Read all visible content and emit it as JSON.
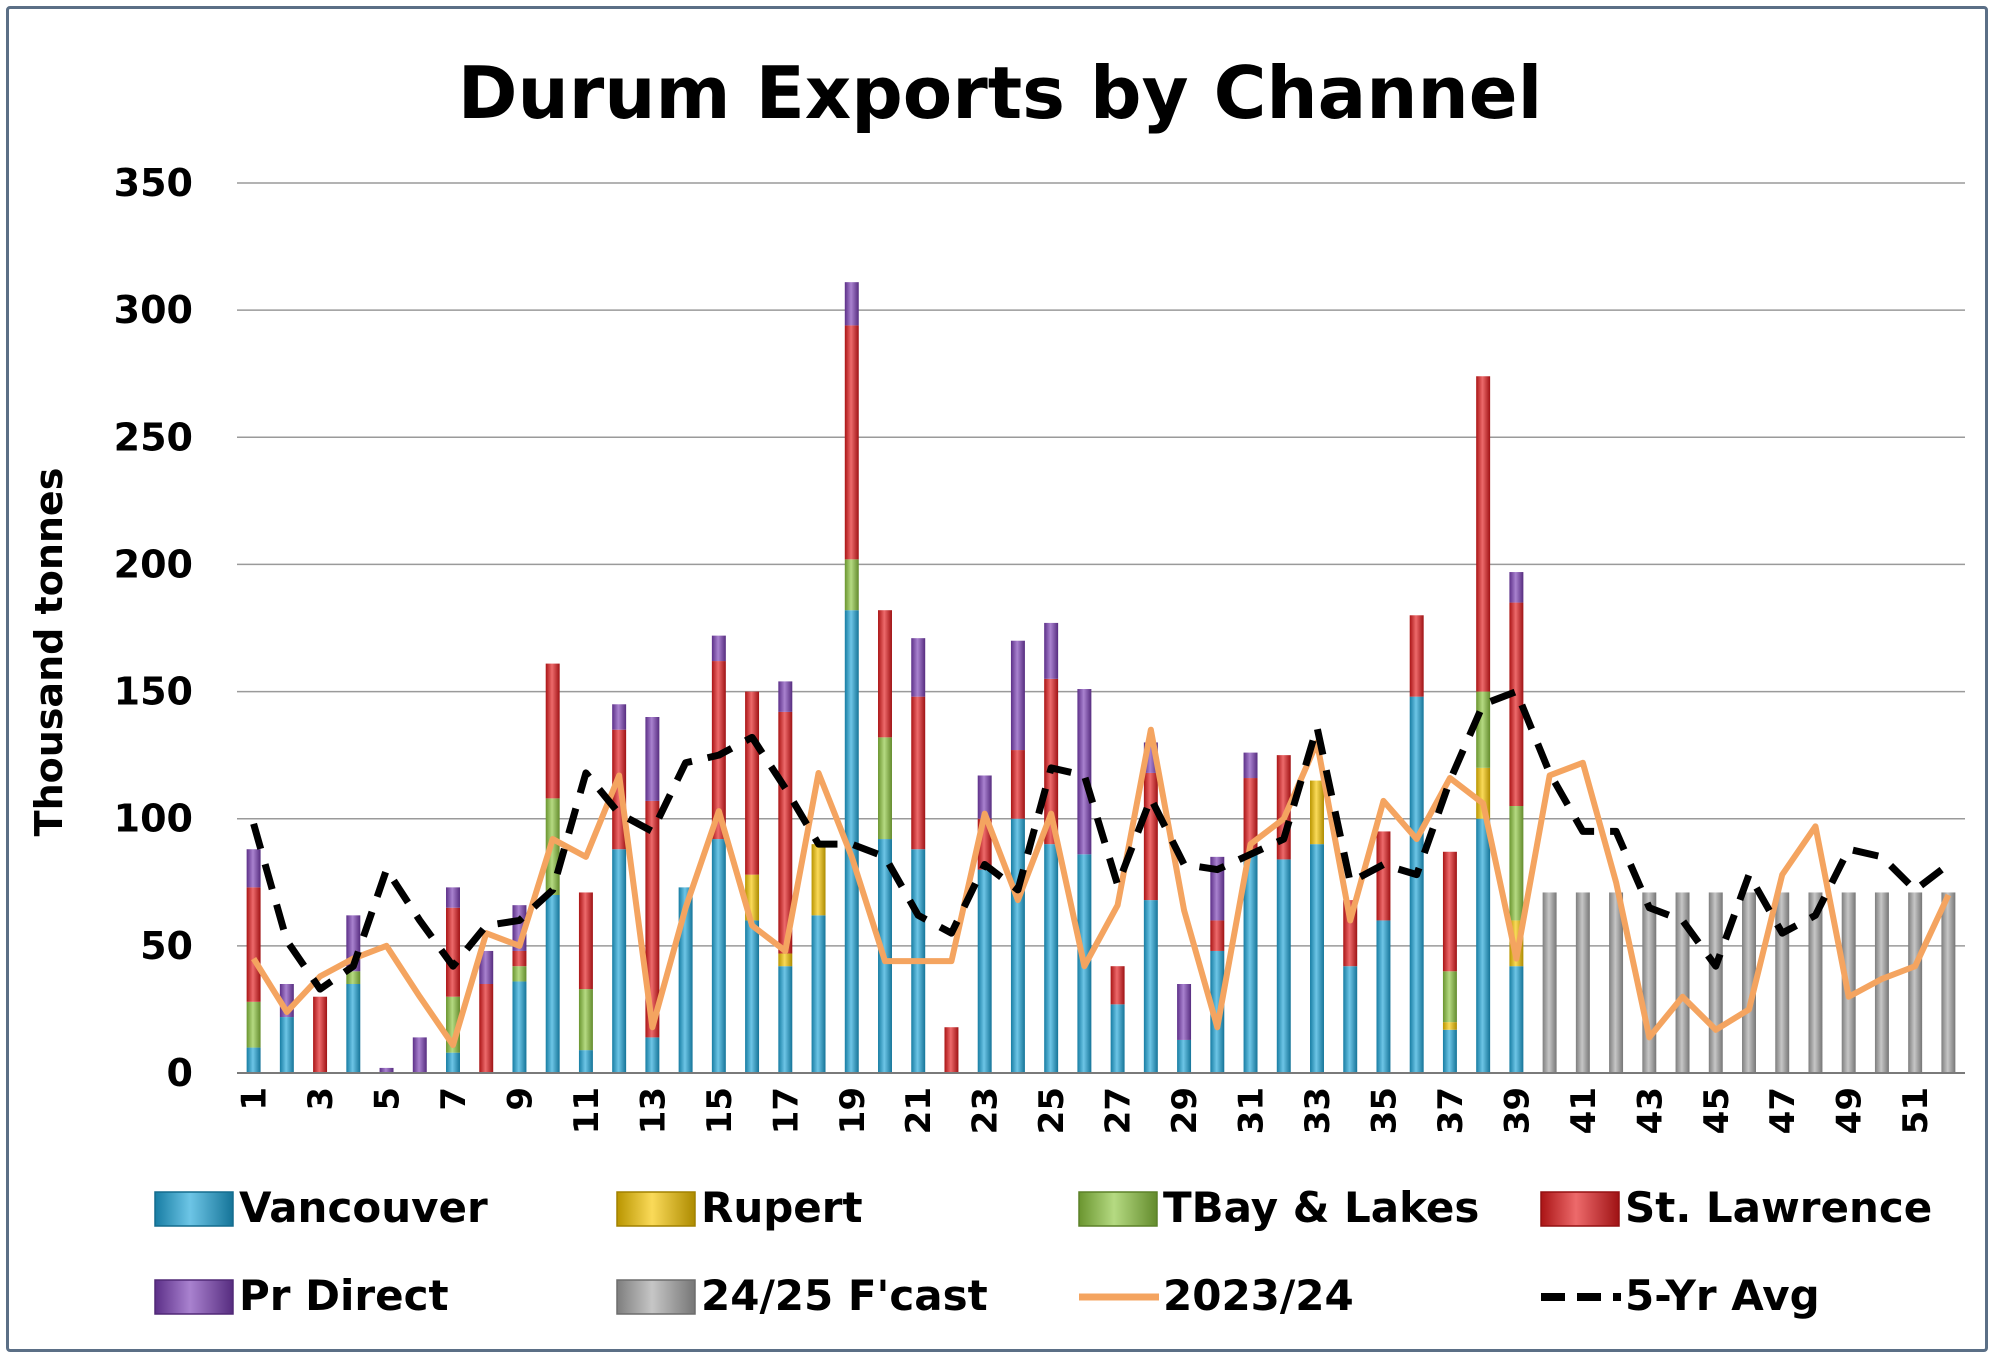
{
  "chart_data": {
    "type": "bar",
    "title": "Durum Exports by Channel",
    "ylabel": "Thousand tonnes",
    "xlabel": "",
    "ylim": [
      0,
      350
    ],
    "yticks": [
      0,
      50,
      100,
      150,
      200,
      250,
      300,
      350
    ],
    "x_tick_labels": [
      "1",
      "3",
      "5",
      "7",
      "9",
      "11",
      "13",
      "15",
      "17",
      "19",
      "21",
      "23",
      "25",
      "27",
      "29",
      "31",
      "33",
      "35",
      "37",
      "39",
      "41",
      "43",
      "45",
      "47",
      "49",
      "51"
    ],
    "weeks": [
      1,
      2,
      3,
      4,
      5,
      6,
      7,
      8,
      9,
      10,
      11,
      12,
      13,
      14,
      15,
      16,
      17,
      18,
      19,
      20,
      21,
      22,
      23,
      24,
      25,
      26,
      27,
      28,
      29,
      30,
      31,
      32,
      33,
      34,
      35,
      36,
      37,
      38,
      39,
      40,
      41,
      42,
      43,
      44,
      45,
      46,
      47,
      48,
      49,
      50,
      51,
      52
    ],
    "grid": true,
    "legend_position": "bottom",
    "stacked_series": [
      {
        "name": "Vancouver",
        "color": "#1ea6d9",
        "values": [
          10,
          22,
          0,
          35,
          0,
          0,
          8,
          0,
          36,
          70,
          9,
          88,
          14,
          73,
          92,
          60,
          42,
          62,
          182,
          92,
          88,
          0,
          80,
          100,
          90,
          86,
          27,
          68,
          13,
          48,
          86,
          84,
          90,
          42,
          60,
          148,
          17,
          100,
          42,
          0,
          0,
          0,
          0,
          0,
          0,
          0,
          0,
          0,
          0,
          0,
          0,
          0
        ]
      },
      {
        "name": "Rupert",
        "color": "#f7c600",
        "values": [
          0,
          0,
          0,
          0,
          0,
          0,
          0,
          0,
          0,
          0,
          0,
          0,
          0,
          0,
          0,
          18,
          5,
          28,
          0,
          0,
          0,
          0,
          0,
          0,
          0,
          0,
          0,
          0,
          0,
          0,
          0,
          0,
          25,
          0,
          0,
          0,
          3,
          20,
          18,
          0,
          0,
          0,
          0,
          0,
          0,
          0,
          0,
          0,
          0,
          0,
          0,
          0
        ]
      },
      {
        "name": "TBay & Lakes",
        "color": "#8dc63f",
        "values": [
          18,
          0,
          0,
          5,
          0,
          0,
          22,
          0,
          6,
          38,
          24,
          0,
          0,
          0,
          0,
          0,
          0,
          0,
          20,
          40,
          0,
          0,
          0,
          0,
          0,
          0,
          0,
          0,
          0,
          0,
          0,
          0,
          0,
          0,
          0,
          0,
          20,
          30,
          45,
          0,
          0,
          0,
          0,
          0,
          0,
          0,
          0,
          0,
          0,
          0,
          0,
          0
        ]
      },
      {
        "name": "St. Lawrence",
        "color": "#e31a1c",
        "values": [
          45,
          0,
          30,
          0,
          0,
          0,
          35,
          35,
          6,
          53,
          38,
          47,
          93,
          0,
          70,
          72,
          95,
          0,
          92,
          50,
          60,
          18,
          20,
          27,
          65,
          0,
          15,
          50,
          0,
          12,
          30,
          41,
          0,
          26,
          35,
          32,
          47,
          124,
          80,
          0,
          0,
          0,
          0,
          0,
          0,
          0,
          0,
          0,
          0,
          0,
          0,
          0
        ]
      },
      {
        "name": "Pr Direct",
        "color": "#7b3fb5",
        "values": [
          15,
          13,
          0,
          22,
          2,
          14,
          8,
          13,
          18,
          0,
          0,
          10,
          33,
          0,
          10,
          0,
          12,
          0,
          17,
          0,
          23,
          0,
          17,
          43,
          22,
          65,
          0,
          12,
          22,
          25,
          10,
          0,
          0,
          0,
          0,
          0,
          0,
          0,
          12,
          0,
          0,
          0,
          0,
          0,
          0,
          0,
          0,
          0,
          0,
          0,
          0,
          0
        ]
      },
      {
        "name": "24/25 F'cast",
        "color": "#a8a8a8",
        "values": [
          0,
          0,
          0,
          0,
          0,
          0,
          0,
          0,
          0,
          0,
          0,
          0,
          0,
          0,
          0,
          0,
          0,
          0,
          0,
          0,
          0,
          0,
          0,
          0,
          0,
          0,
          0,
          0,
          0,
          0,
          0,
          0,
          0,
          0,
          0,
          0,
          0,
          0,
          0,
          71,
          71,
          71,
          71,
          71,
          71,
          71,
          71,
          71,
          71,
          71,
          71,
          71
        ]
      }
    ],
    "line_series": [
      {
        "name": "2023/24",
        "color": "#f4a460",
        "style": "solid",
        "values": [
          45,
          24,
          38,
          45,
          50,
          30,
          11,
          55,
          50,
          92,
          85,
          117,
          18,
          65,
          103,
          58,
          48,
          118,
          85,
          44,
          44,
          44,
          102,
          68,
          102,
          42,
          66,
          135,
          64,
          18,
          90,
          100,
          130,
          60,
          107,
          92,
          116,
          106,
          45,
          117,
          122,
          75,
          14,
          30,
          17,
          25,
          78,
          97,
          30,
          37,
          42,
          70
        ]
      },
      {
        "name": "5-Yr Avg",
        "color": "#000000",
        "style": "dashed",
        "values": [
          98,
          52,
          33,
          42,
          80,
          60,
          42,
          58,
          60,
          72,
          118,
          102,
          95,
          122,
          125,
          132,
          112,
          90,
          90,
          85,
          62,
          55,
          82,
          72,
          120,
          117,
          74,
          108,
          82,
          80,
          86,
          92,
          136,
          75,
          82,
          78,
          115,
          145,
          150,
          118,
          95,
          95,
          65,
          60,
          42,
          78,
          55,
          62,
          88,
          85,
          72,
          82
        ]
      }
    ]
  }
}
